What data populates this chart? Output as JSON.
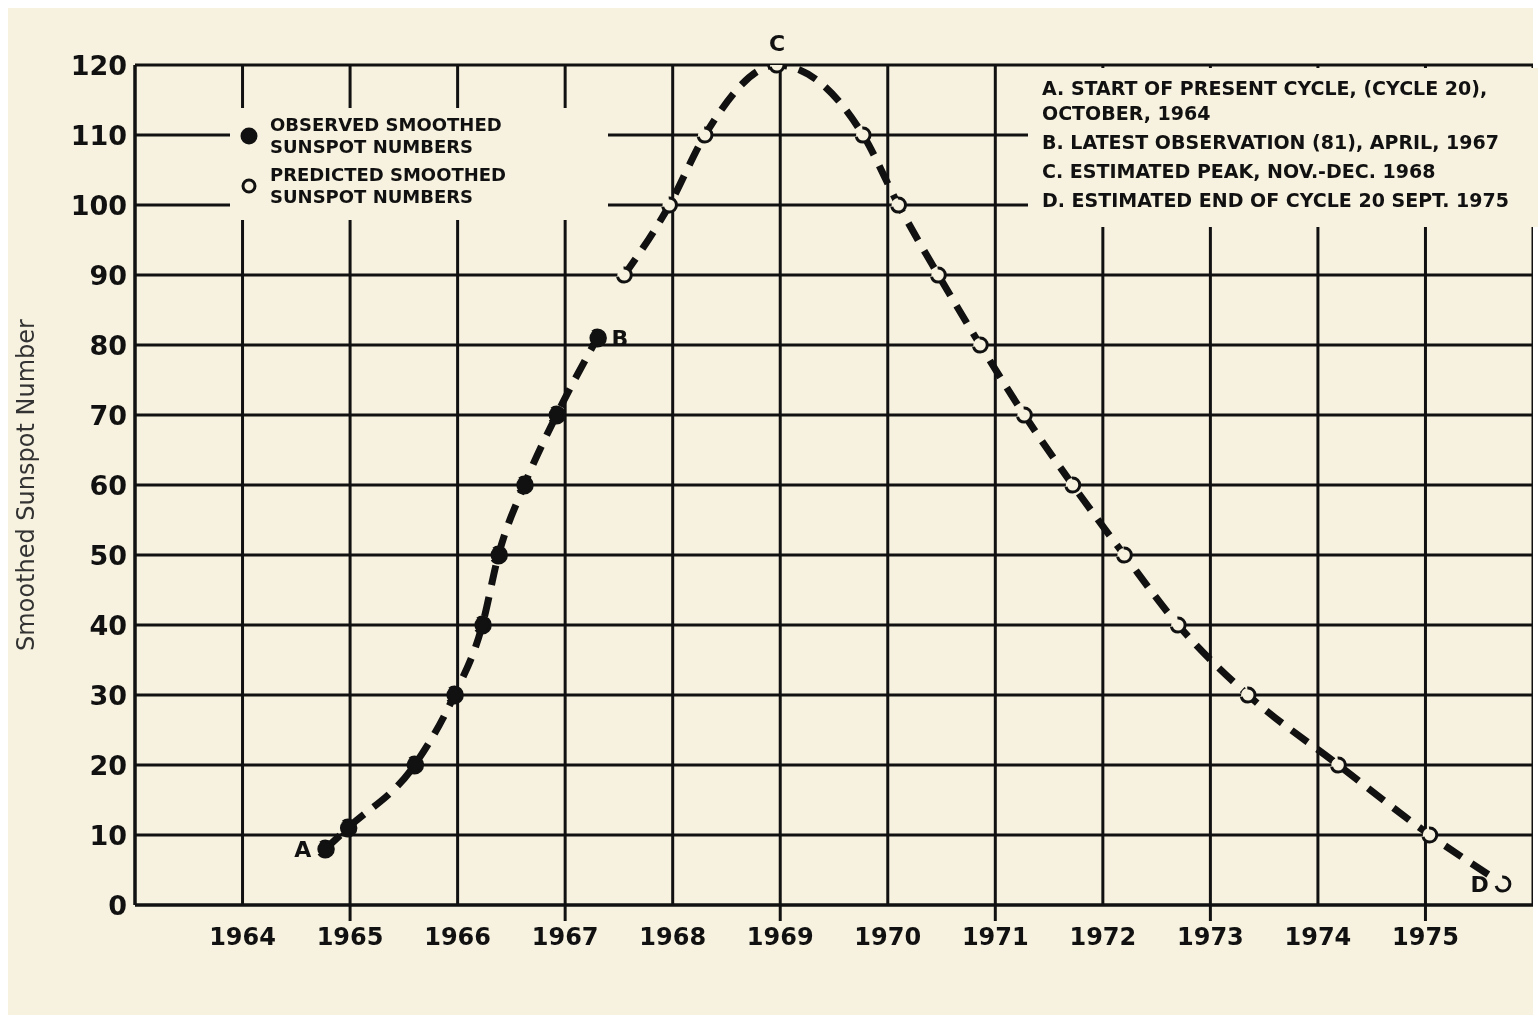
{
  "chart_data": {
    "type": "line",
    "ylabel": "Smoothed Sunspot Number",
    "xlim": [
      1963,
      1976
    ],
    "xticks": [
      1964,
      1965,
      1966,
      1967,
      1968,
      1969,
      1970,
      1971,
      1972,
      1973,
      1974,
      1975
    ],
    "ylim": [
      0,
      120
    ],
    "yticks": [
      0,
      10,
      20,
      30,
      40,
      50,
      60,
      70,
      80,
      90,
      100,
      110,
      120
    ],
    "grid": true,
    "legend": "top left",
    "marker": "circle",
    "line_style": "dashed",
    "series": [
      {
        "name": "OBSERVED SMOOTHED SUNSPOT NUMBERS",
        "color": "#111111",
        "x": [
          1964.77,
          1964.98,
          1965.6,
          1965.97,
          1966.23,
          1966.38,
          1966.62,
          1966.92,
          1967.3
        ],
        "values": [
          8,
          11,
          20,
          30,
          40,
          50,
          60,
          70,
          81
        ]
      },
      {
        "name": "PREDICTED SMOOTHED SUNSPOT NUMBERS",
        "color": "#111111",
        "x": [
          1967.55,
          1967.97,
          1968.3,
          1968.97,
          1969.77,
          1970.1,
          1970.47,
          1970.86,
          1971.27,
          1971.72,
          1972.2,
          1972.7,
          1973.35,
          1974.19,
          1975.04,
          1975.72
        ],
        "values": [
          90,
          100,
          110,
          120,
          110,
          100,
          90,
          80,
          70,
          60,
          50,
          40,
          30,
          20,
          10,
          3
        ]
      }
    ],
    "annotations": [
      {
        "text": "A",
        "x": 1964.77,
        "y": 8
      },
      {
        "text": "B",
        "x": 1967.3,
        "y": 81
      },
      {
        "text": "C",
        "x": 1968.97,
        "y": 120
      },
      {
        "text": "D",
        "x": 1975.72,
        "y": 3
      },
      "A. START OF PRESENT CYCLE, (CYCLE 20), OCTOBER, 1964",
      "B. LATEST OBSERVATION (81), APRIL, 1967",
      "C. ESTIMATED PEAK, NOV.-DEC. 1968",
      "D. ESTIMATED END OF CYCLE 20 SEPT. 1975"
    ]
  }
}
